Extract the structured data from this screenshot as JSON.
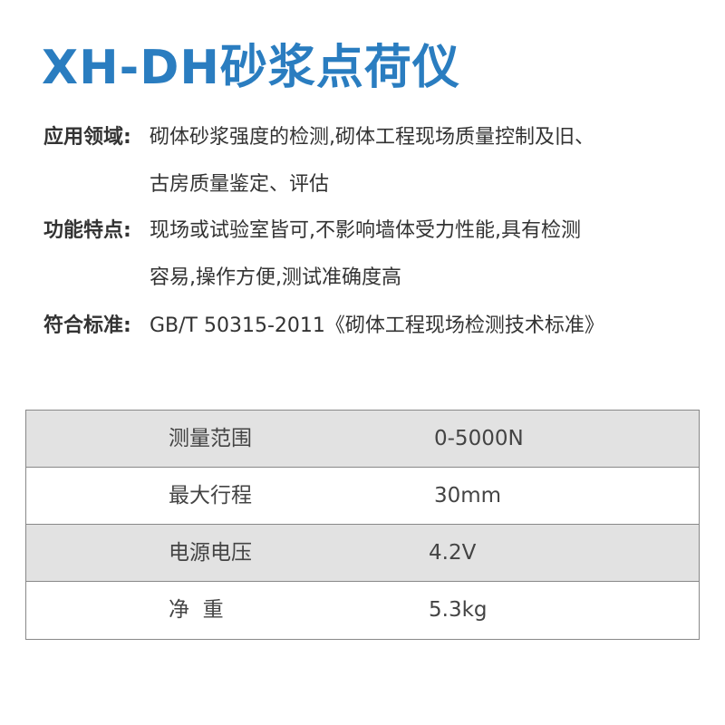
{
  "title": "XH-DH砂浆点荷仪",
  "sections": [
    {
      "label": "应用领域:",
      "lines": [
        "砌体砂浆强度的检测,砌体工程现场质量控制及旧、",
        "古房质量鉴定、评估"
      ]
    },
    {
      "label": "功能特点:",
      "lines": [
        "现场或试验室皆可,不影响墙体受力性能,具有检测",
        "容易,操作方便,测试准确度高"
      ]
    },
    {
      "label": "符合标准:",
      "lines": [
        "GB/T 50315-2011《砌体工程现场检测技术标准》"
      ]
    }
  ],
  "specs": [
    {
      "key": "测量范围",
      "value": "0-5000N"
    },
    {
      "key": "最大行程",
      "value": "30mm"
    },
    {
      "key": "电源电压",
      "value": "4.2V"
    },
    {
      "key": "净  重",
      "value": "5.3kg"
    }
  ],
  "colors": {
    "title": "#2a7dc0",
    "row_shade": "#e2e2e2"
  }
}
